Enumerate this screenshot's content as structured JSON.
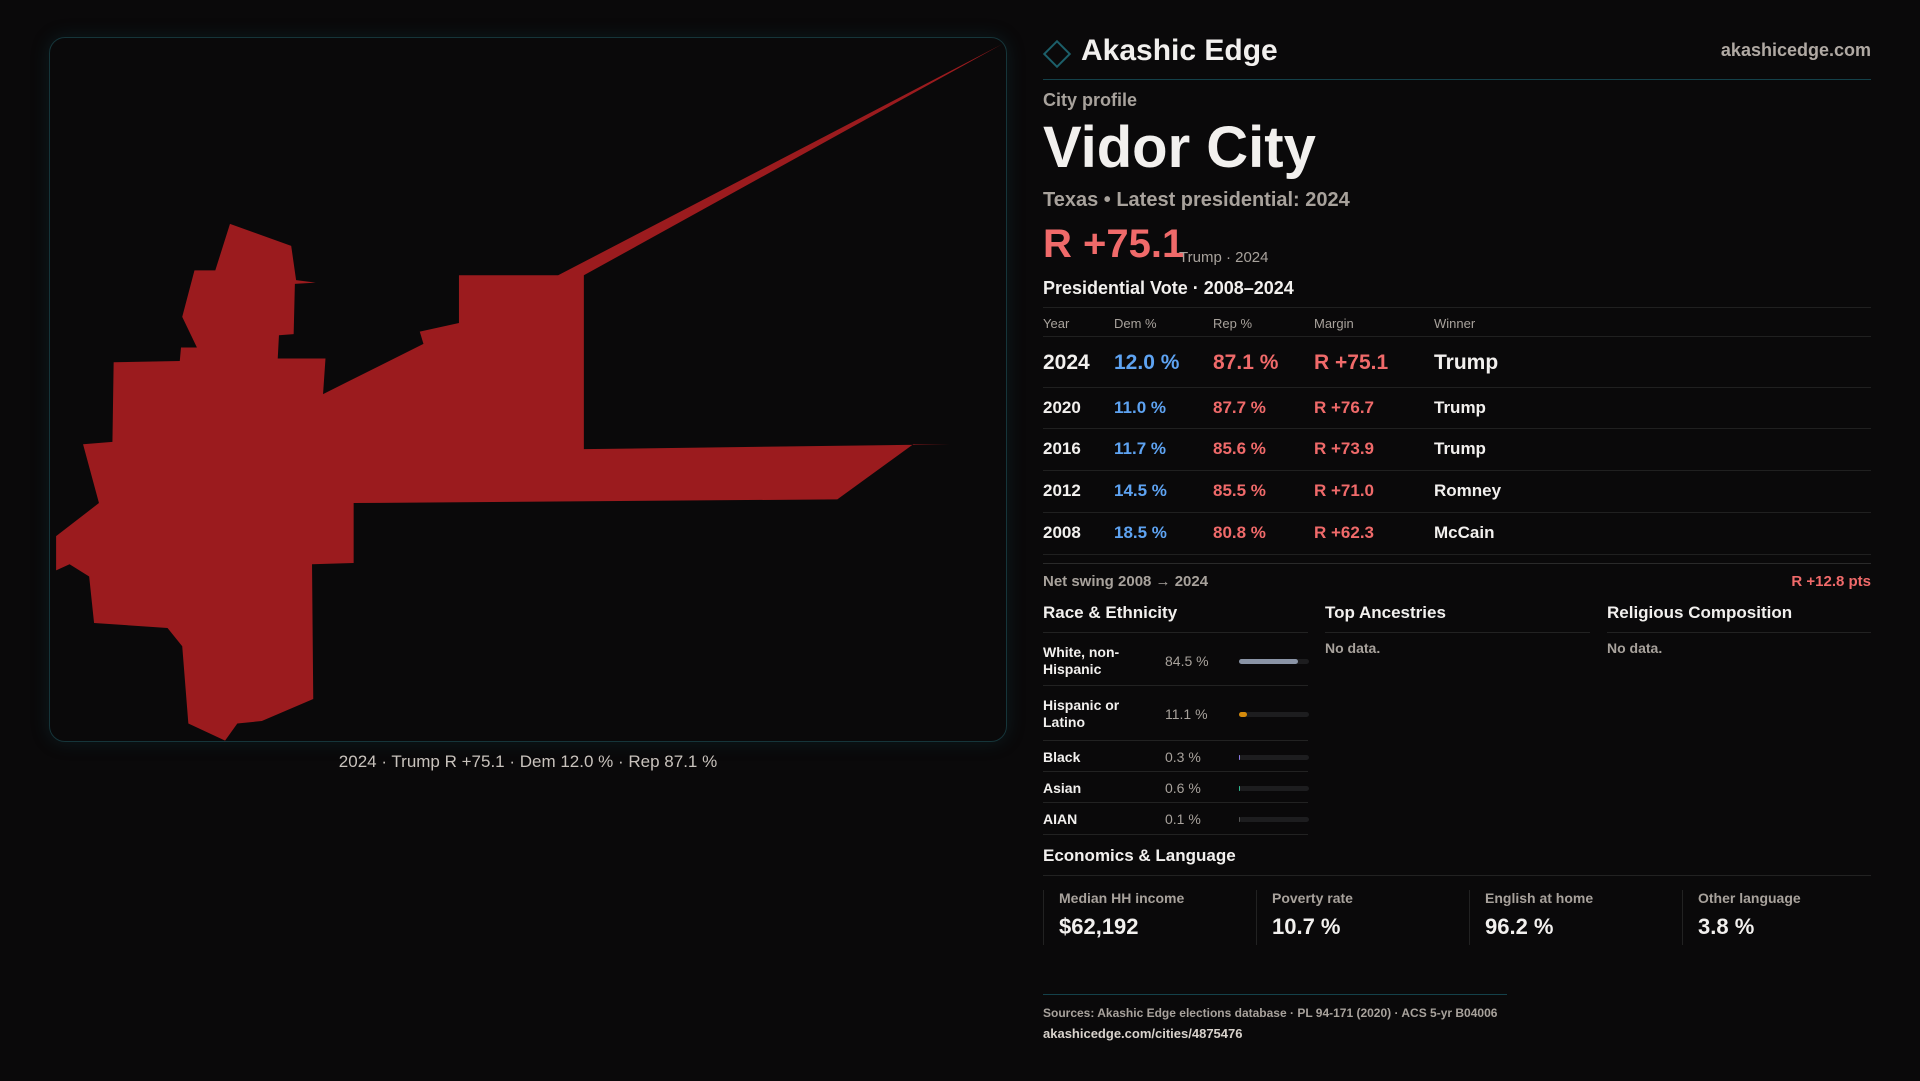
{
  "brand": {
    "name": "Akashic Edge",
    "site": "akashicedge.com"
  },
  "profile": {
    "kicker": "City profile",
    "title": "Vidor City",
    "subtitle": "Texas • Latest presidential: 2024",
    "margin": "R +75.1",
    "margin_note": "Trump · 2024"
  },
  "map": {
    "caption": "2024 · Trump R +75.1 · Dem 12.0 % · Rep 87.1 %",
    "fill": "#9b1b1e"
  },
  "votes": {
    "title": "Presidential Vote · 2008–2024",
    "headers": [
      "Year",
      "Dem %",
      "Rep %",
      "Margin",
      "Winner"
    ],
    "rows": [
      [
        "2024",
        "12.0 %",
        "87.1 %",
        "R +75.1",
        "Trump"
      ],
      [
        "2020",
        "11.0 %",
        "87.7 %",
        "R +76.7",
        "Trump"
      ],
      [
        "2016",
        "11.7 %",
        "85.6 %",
        "R +73.9",
        "Trump"
      ],
      [
        "2012",
        "14.5 %",
        "85.5 %",
        "R +71.0",
        "Romney"
      ],
      [
        "2008",
        "18.5 %",
        "80.8 %",
        "R +62.3",
        "McCain"
      ]
    ],
    "swing_label": "Net swing 2008 → 2024",
    "swing_value": "R +12.8 pts"
  },
  "race": {
    "title": "Race & Ethnicity",
    "rows": [
      {
        "label": "White, non-Hispanic",
        "value": "84.5 %",
        "pct": 84.5,
        "color": "#8a94a6"
      },
      {
        "label": "Hispanic or Latino",
        "value": "11.1 %",
        "pct": 11.1,
        "color": "#d48a0c"
      },
      {
        "label": "Black",
        "value": "0.3 %",
        "pct": 0.3,
        "color": "#8a7ae0"
      },
      {
        "label": "Asian",
        "value": "0.6 %",
        "pct": 0.6,
        "color": "#2fb890"
      },
      {
        "label": "AIAN",
        "value": "0.1 %",
        "pct": 0.1,
        "color": "#555"
      }
    ]
  },
  "ancestry": {
    "title": "Top Ancestries",
    "empty": "No data."
  },
  "religion": {
    "title": "Religious Composition",
    "empty": "No data."
  },
  "econ": {
    "title": "Economics & Language",
    "cards": [
      {
        "label": "Median HH income",
        "value": "$62,192"
      },
      {
        "label": "Poverty rate",
        "value": "10.7 %"
      },
      {
        "label": "English at home",
        "value": "96.2 %"
      },
      {
        "label": "Other language",
        "value": "3.8 %"
      }
    ]
  },
  "footer": {
    "sources": "Sources: Akashic Edge elections database · PL 94-171 (2020) · ACS 5-yr B04006",
    "url": "akashicedge.com/cities/4875476"
  },
  "colors": {
    "rep": "#f06a6a",
    "dem": "#5ea3f2",
    "accent": "#1c5f6a"
  }
}
